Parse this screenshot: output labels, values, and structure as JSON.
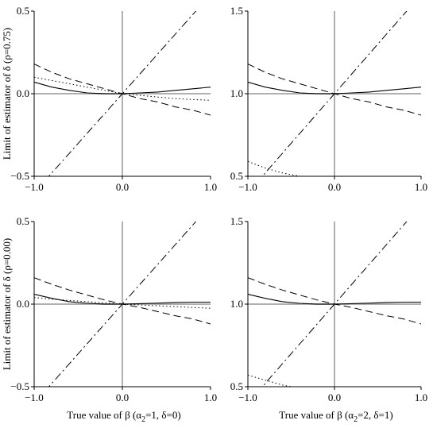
{
  "figure": {
    "ylabel_top": "Limit of estimator of δ (ρ=0.75)",
    "ylabel_bottom": "Limit of estimator of δ (ρ=0.00)",
    "xlabel_left": "True value of β (α",
    "xlabel_left_sub": "2",
    "xlabel_left_rest": "=1, δ=0)",
    "xlabel_right": "True value of β (α",
    "xlabel_right_sub": "2",
    "xlabel_right_rest": "=2, δ=1)"
  },
  "chart_data": [
    {
      "type": "line",
      "panel": "top-left",
      "xlim": [
        -1,
        1
      ],
      "ylim": [
        -0.5,
        0.5
      ],
      "xticks": [
        "−1.0",
        "0.0",
        "1.0"
      ],
      "yticks": [
        "−0.5",
        "0.0",
        "0.5"
      ],
      "x": [
        -1.0,
        -0.8,
        -0.6,
        -0.4,
        -0.2,
        0.0,
        0.2,
        0.4,
        0.6,
        0.8,
        1.0
      ],
      "series": [
        {
          "style": "solid",
          "values": [
            0.07,
            0.04,
            0.02,
            0.005,
            0.0,
            0.0,
            0.005,
            0.01,
            0.02,
            0.03,
            0.04
          ]
        },
        {
          "style": "dashed",
          "values": [
            0.18,
            0.13,
            0.09,
            0.06,
            0.03,
            0.0,
            -0.03,
            -0.05,
            -0.08,
            -0.1,
            -0.13
          ]
        },
        {
          "style": "dotted",
          "values": [
            0.1,
            0.08,
            0.06,
            0.04,
            0.02,
            0.0,
            -0.01,
            -0.02,
            -0.03,
            -0.035,
            -0.04
          ]
        },
        {
          "style": "dashdot",
          "values": [
            -0.6,
            -0.48,
            -0.36,
            -0.24,
            -0.12,
            0.0,
            0.12,
            0.24,
            0.36,
            0.48,
            0.6
          ]
        }
      ]
    },
    {
      "type": "line",
      "panel": "top-right",
      "xlim": [
        -1,
        1
      ],
      "ylim": [
        0.5,
        1.5
      ],
      "xticks": [
        "−1.0",
        "0.0",
        "1.0"
      ],
      "yticks": [
        "0.5",
        "1.0",
        "1.5"
      ],
      "x": [
        -1.0,
        -0.8,
        -0.6,
        -0.4,
        -0.2,
        0.0,
        0.2,
        0.4,
        0.6,
        0.8,
        1.0
      ],
      "series": [
        {
          "style": "solid",
          "values": [
            1.07,
            1.04,
            1.02,
            1.005,
            1.0,
            1.0,
            1.005,
            1.01,
            1.02,
            1.03,
            1.04
          ]
        },
        {
          "style": "dashed",
          "values": [
            1.18,
            1.13,
            1.09,
            1.06,
            1.03,
            1.0,
            0.97,
            0.95,
            0.92,
            0.9,
            0.87
          ]
        },
        {
          "style": "dotted",
          "values": [
            0.59,
            0.55,
            0.52,
            0.5,
            null,
            null,
            null,
            null,
            null,
            null,
            null
          ]
        },
        {
          "style": "dashdot",
          "values": [
            0.38,
            0.52,
            0.64,
            0.76,
            0.88,
            1.0,
            1.12,
            1.24,
            1.36,
            1.48,
            1.6
          ]
        }
      ]
    },
    {
      "type": "line",
      "panel": "bottom-left",
      "xlim": [
        -1,
        1
      ],
      "ylim": [
        -0.5,
        0.5
      ],
      "xticks": [
        "−1.0",
        "0.0",
        "1.0"
      ],
      "yticks": [
        "−0.5",
        "0.0",
        "0.5"
      ],
      "x": [
        -1.0,
        -0.8,
        -0.6,
        -0.4,
        -0.2,
        0.0,
        0.2,
        0.4,
        0.6,
        0.8,
        1.0
      ],
      "series": [
        {
          "style": "solid",
          "values": [
            0.06,
            0.035,
            0.015,
            0.005,
            0.0,
            0.0,
            0.003,
            0.006,
            0.01,
            0.012,
            0.012
          ]
        },
        {
          "style": "dashed",
          "values": [
            0.16,
            0.12,
            0.085,
            0.055,
            0.025,
            0.0,
            -0.02,
            -0.045,
            -0.07,
            -0.09,
            -0.12
          ]
        },
        {
          "style": "dotted",
          "values": [
            0.04,
            0.03,
            0.022,
            0.015,
            0.007,
            0.0,
            -0.005,
            -0.01,
            -0.015,
            -0.02,
            -0.025
          ]
        },
        {
          "style": "dashdot",
          "values": [
            -0.6,
            -0.48,
            -0.36,
            -0.24,
            -0.12,
            0.0,
            0.12,
            0.24,
            0.36,
            0.48,
            0.6
          ]
        }
      ]
    },
    {
      "type": "line",
      "panel": "bottom-right",
      "xlim": [
        -1,
        1
      ],
      "ylim": [
        0.5,
        1.5
      ],
      "xticks": [
        "−1.0",
        "0.0",
        "1.0"
      ],
      "yticks": [
        "0.5",
        "1.0",
        "1.5"
      ],
      "x": [
        -1.0,
        -0.8,
        -0.6,
        -0.4,
        -0.2,
        0.0,
        0.2,
        0.4,
        0.6,
        0.8,
        1.0
      ],
      "series": [
        {
          "style": "solid",
          "values": [
            1.06,
            1.035,
            1.015,
            1.005,
            1.0,
            1.0,
            1.003,
            1.006,
            1.01,
            1.012,
            1.012
          ]
        },
        {
          "style": "dashed",
          "values": [
            1.16,
            1.12,
            1.085,
            1.055,
            1.025,
            1.0,
            0.98,
            0.955,
            0.93,
            0.91,
            0.88
          ]
        },
        {
          "style": "dotted",
          "values": [
            0.57,
            0.54,
            0.51,
            0.49,
            null,
            null,
            null,
            null,
            null,
            null,
            null
          ]
        },
        {
          "style": "dashdot",
          "values": [
            0.38,
            0.52,
            0.64,
            0.76,
            0.88,
            1.0,
            1.12,
            1.24,
            1.36,
            1.48,
            1.6
          ]
        }
      ]
    }
  ]
}
